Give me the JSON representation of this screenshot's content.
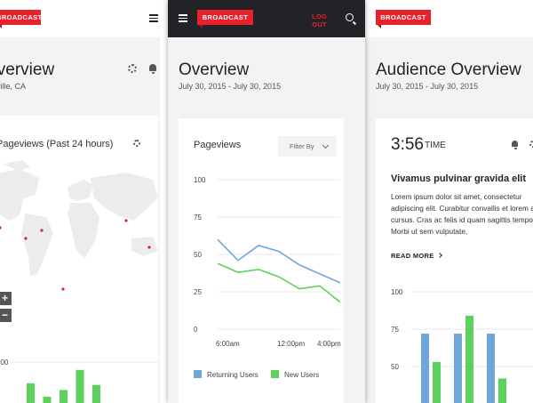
{
  "colors": {
    "brand": "#e8222b",
    "blue": "#6fa7dc",
    "green": "#5cd05c",
    "dark_bar": "#222326"
  },
  "left": {
    "brand": "BROADCAST",
    "title": "Overview",
    "subtitle": "ville, CA",
    "card_title": "Pageviews (Past 24 hours)",
    "zoom_in": "+",
    "zoom_out": "−",
    "chart_data": {
      "type": "bar",
      "ytick_visible": "000",
      "values": [
        82,
        74,
        78,
        90,
        81,
        48,
        30
      ],
      "ylim": [
        0,
        100
      ]
    }
  },
  "center": {
    "brand": "BROADCAST",
    "logout_line1": "LOG",
    "logout_line2": "OUT",
    "title": "Overview",
    "subtitle": "July 30, 2015 - July 30, 2015",
    "card_title": "Pageviews",
    "filter_label": "Filter By",
    "chart_data": {
      "type": "line",
      "title": "Pageviews",
      "yticks": [
        "100",
        "75",
        "50",
        "25",
        "0"
      ],
      "ylim": [
        0,
        100
      ],
      "xticks": [
        "6:00am",
        "12:00pm",
        "4:00pm"
      ],
      "series": [
        {
          "name": "Returning Users",
          "color": "#6fa7dc",
          "values": [
            60,
            46,
            56,
            52,
            43,
            37,
            31
          ]
        },
        {
          "name": "New Users",
          "color": "#5cd05c",
          "values": [
            44,
            38,
            40,
            35,
            27,
            29,
            18
          ]
        }
      ]
    }
  },
  "right": {
    "brand": "BROADCAST",
    "title": "Audience Overview",
    "subtitle": "July 30, 2015 - July 30, 2015",
    "time": "3:56",
    "time_label": "TIME",
    "heading": "Vivamus pulvinar gravida elit",
    "paragraph": "Lorem ipsum dolor sit amet, consectetur adipiscing elit. Curabitur convallis et lorem at cursus. Cras ac felis id quam sagittis tempor. Morbi ut sem vulputate,",
    "read_more": "READ MORE",
    "chart_data": {
      "type": "bar",
      "yticks": [
        "100",
        "75",
        "50"
      ],
      "ylim": [
        0,
        100
      ],
      "series": [
        {
          "color": "#6fa7dc",
          "values": [
            72,
            72,
            72
          ]
        },
        {
          "color": "#5cd05c",
          "values": [
            53,
            84,
            42
          ]
        }
      ]
    }
  }
}
